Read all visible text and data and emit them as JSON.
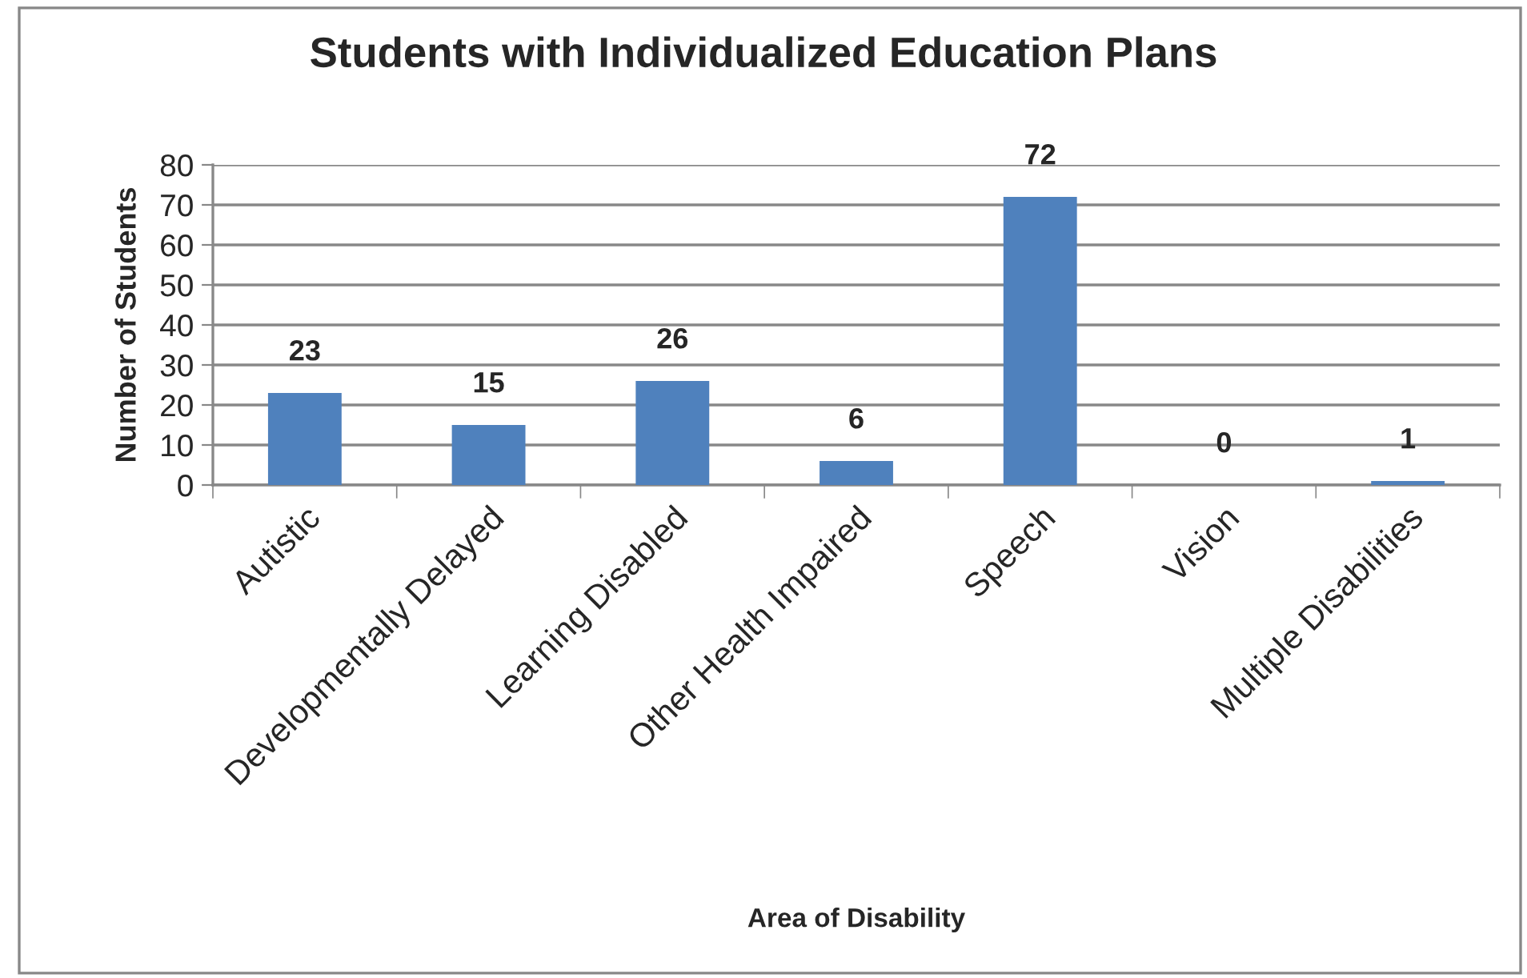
{
  "chart_data": {
    "type": "bar",
    "title": "Students with Individualized Education Plans",
    "xlabel": "Area of Disability",
    "ylabel": "Number of Students",
    "categories": [
      "Autistic",
      "Developmentally Delayed",
      "Learning Disabled",
      "Other Health Impaired",
      "Speech",
      "Vision",
      "Multiple Disabilities"
    ],
    "values": [
      23,
      15,
      26,
      6,
      72,
      0,
      1
    ],
    "color": "#4f81bd",
    "ylim": [
      0,
      80
    ],
    "yticks": [
      0,
      10,
      20,
      30,
      40,
      50,
      60,
      70,
      80
    ],
    "grid": "y",
    "data_labels": true
  }
}
